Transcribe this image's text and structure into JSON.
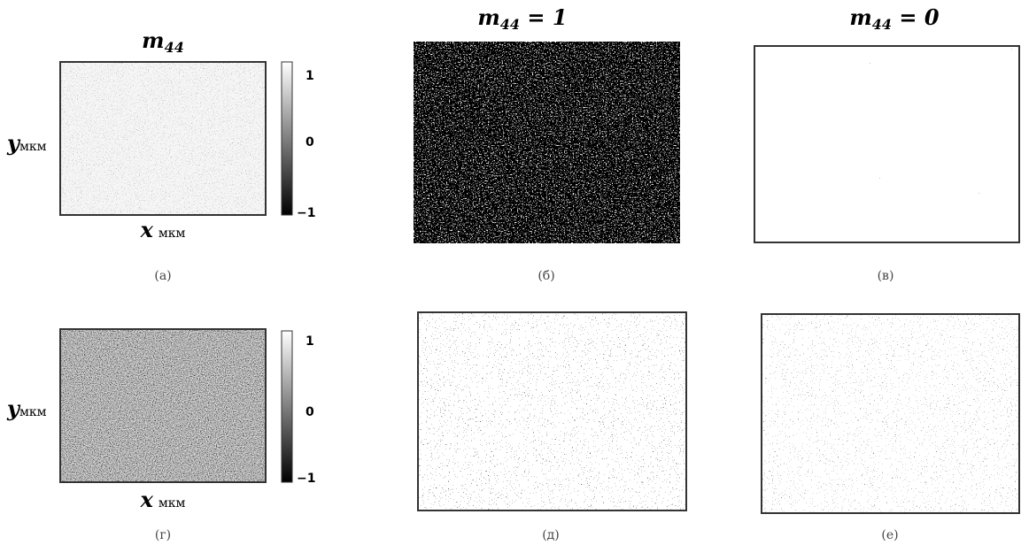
{
  "panels": [
    {
      "title": {
        "base": "m",
        "sub": "44"
      },
      "colorbar_ticks": [
        "1",
        "0",
        "−1"
      ],
      "y_label": {
        "var": "y",
        "unit": "мкм"
      },
      "x_label": {
        "var": "x",
        "unit": "мкм"
      },
      "caption": "(а)"
    },
    {
      "title": {
        "base": "m",
        "sub": "44",
        "rest": " = 1"
      },
      "caption": "(б)"
    },
    {
      "title": {
        "base": "m",
        "sub": "44",
        "rest": " = 0"
      },
      "caption": "(в)"
    },
    {
      "colorbar_ticks": [
        "1",
        "0",
        "−1"
      ],
      "y_label": {
        "var": "y",
        "unit": "мкм"
      },
      "x_label": {
        "var": "x",
        "unit": "мкм"
      },
      "caption": "(г)"
    },
    {
      "caption": "(д)"
    },
    {
      "caption": "(е)"
    }
  ]
}
